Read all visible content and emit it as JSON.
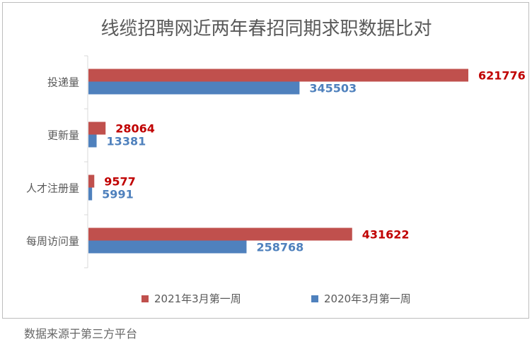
{
  "chart_data": {
    "type": "bar",
    "orientation": "horizontal",
    "title": "线缆招聘网近两年春招同期求职数据比对",
    "categories": [
      "投递量",
      "更新量",
      "人才注册量",
      "每周访问量"
    ],
    "series": [
      {
        "name": "2021年3月第一周",
        "values": [
          621776,
          28064,
          9577,
          431622
        ],
        "color": "#c0504d",
        "label_color": "#c00000"
      },
      {
        "name": "2020年3月第一周",
        "values": [
          345503,
          13381,
          5991,
          258768
        ],
        "color": "#4f81bd",
        "label_color": "#4f81bd"
      }
    ],
    "xlim": [
      0,
      621776
    ],
    "grid": false,
    "legend_position": "bottom",
    "data_labels": true
  },
  "footer": {
    "source": "数据来源于第三方平台"
  }
}
